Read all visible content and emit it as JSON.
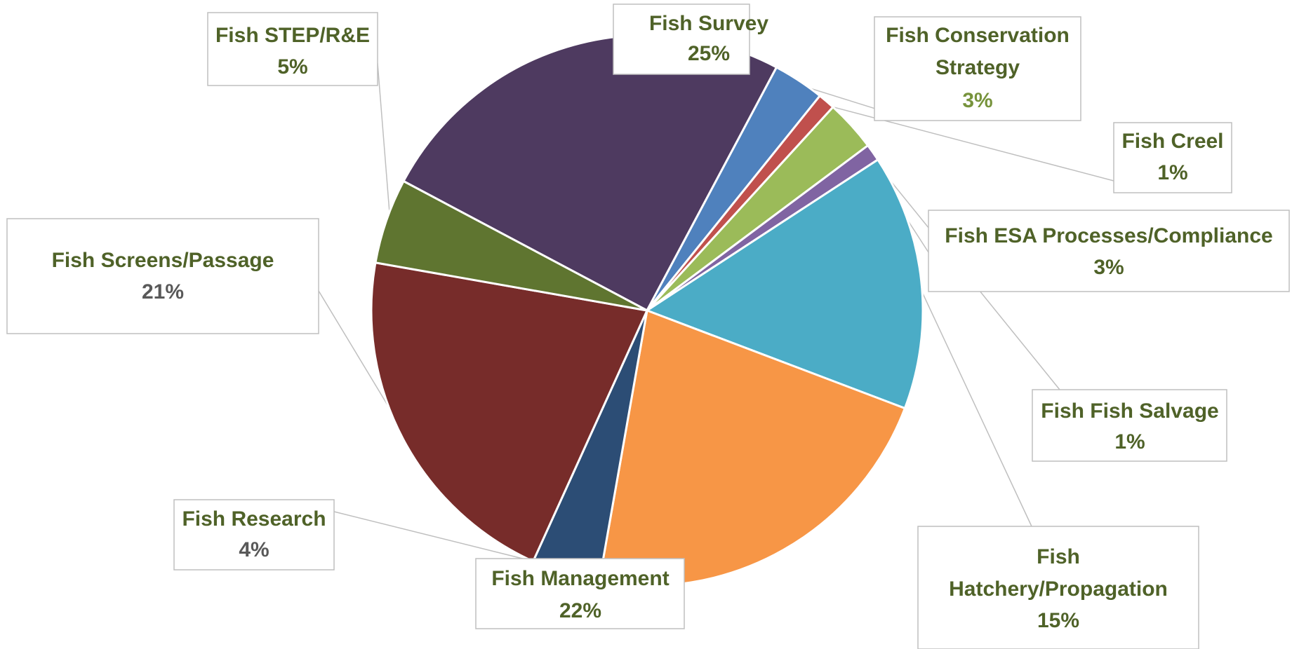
{
  "chart_data": {
    "type": "pie",
    "title": "",
    "slices": [
      {
        "label": "Fish Survey",
        "value": 25,
        "value_label": "25%",
        "color": "#4E3A60",
        "label_color": "#4F6228",
        "value_color": "#4F6228"
      },
      {
        "label": "Fish Conservation Strategy",
        "value": 3,
        "value_label": "3%",
        "color": "#4F81BD",
        "label_color": "#4F6228",
        "value_color": "#77933C"
      },
      {
        "label": "Fish Creel",
        "value": 1,
        "value_label": "1%",
        "color": "#C0504D",
        "label_color": "#4F6228",
        "value_color": "#4F6228"
      },
      {
        "label": "Fish ESA Processes/Compliance",
        "value": 3,
        "value_label": "3%",
        "color": "#9BBB59",
        "label_color": "#4F6228",
        "value_color": "#4F6228"
      },
      {
        "label": "Fish Fish Salvage",
        "value": 1,
        "value_label": "1%",
        "color": "#8064A2",
        "label_color": "#4F6228",
        "value_color": "#4F6228"
      },
      {
        "label": "Fish Hatchery/Propagation",
        "value": 15,
        "value_label": "15%",
        "color": "#4BACC6",
        "label_color": "#4F6228",
        "value_color": "#4F6228"
      },
      {
        "label": "Fish Management",
        "value": 22,
        "value_label": "22%",
        "color": "#F79646",
        "label_color": "#4F6228",
        "value_color": "#4F6228"
      },
      {
        "label": "Fish Research",
        "value": 4,
        "value_label": "4%",
        "color": "#2C4D75",
        "label_color": "#4F6228",
        "value_color": "#595959"
      },
      {
        "label": "Fish Screens/Passage",
        "value": 21,
        "value_label": "21%",
        "color": "#772C2A",
        "label_color": "#4F6228",
        "value_color": "#595959"
      },
      {
        "label": "Fish STEP/R&E",
        "value": 5,
        "value_label": "5%",
        "color": "#5F7530",
        "label_color": "#4F6228",
        "value_color": "#4F6228"
      }
    ],
    "legend": "none",
    "data_labels": "callouts"
  }
}
